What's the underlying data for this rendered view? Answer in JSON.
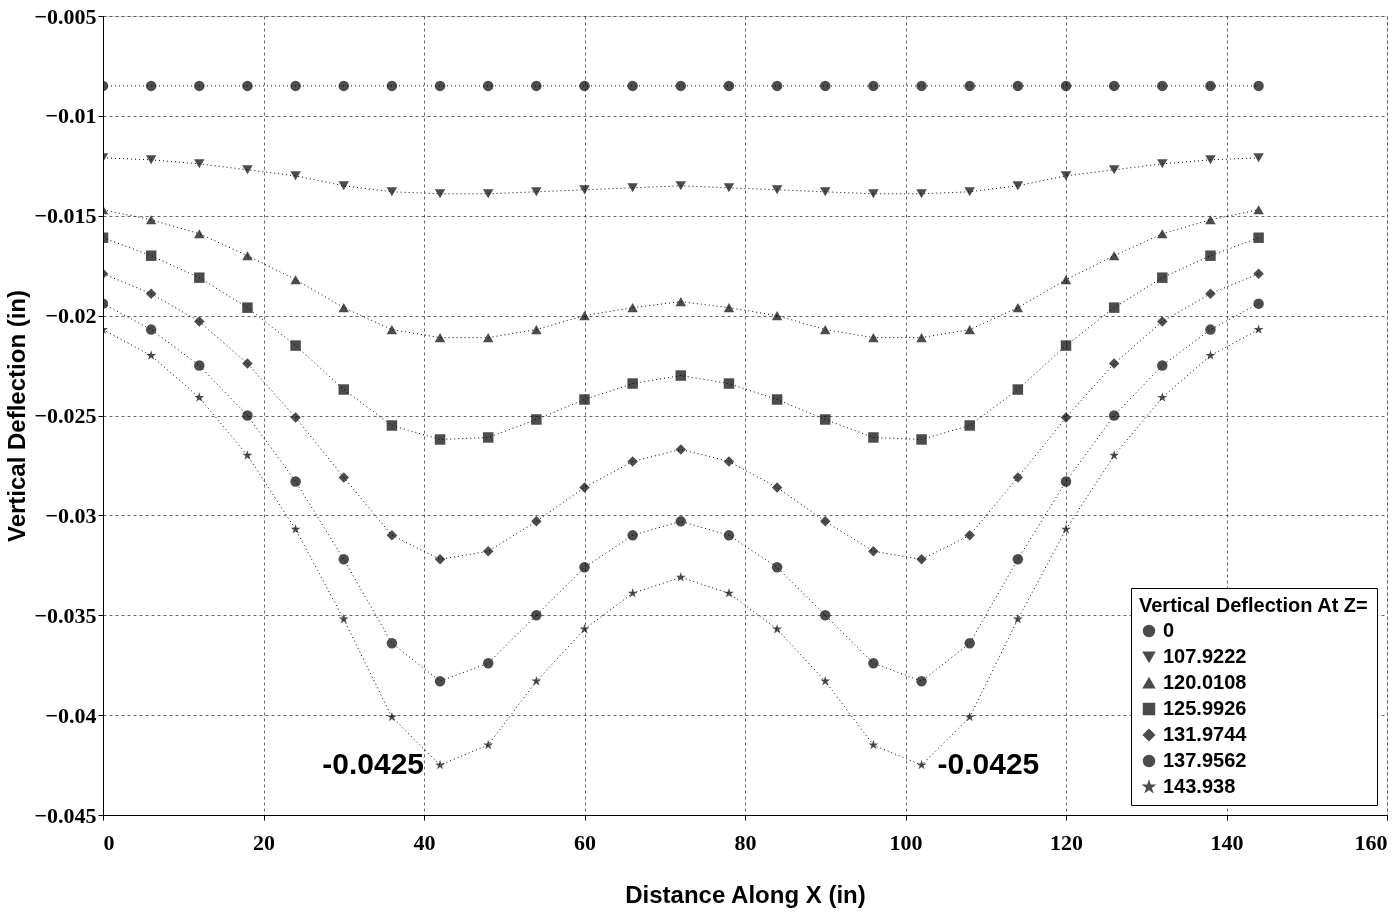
{
  "chart_data": {
    "type": "line",
    "xlabel": "Distance Along X (in)",
    "ylabel": "Vertical Deflection (in)",
    "legend_title": "Vertical Deflection At Z=",
    "x": [
      0,
      6,
      12,
      18,
      24,
      30,
      36,
      42,
      48,
      54,
      60,
      66,
      72,
      78,
      84,
      90,
      96,
      102,
      108,
      114,
      120,
      126,
      132,
      138,
      144
    ],
    "series": [
      {
        "name": "0",
        "color": "#000000",
        "marker": "circle",
        "values": [
          -0.0085,
          -0.0085,
          -0.0085,
          -0.0085,
          -0.0085,
          -0.0085,
          -0.0085,
          -0.0085,
          -0.0085,
          -0.0085,
          -0.0085,
          -0.0085,
          -0.0085,
          -0.0085,
          -0.0085,
          -0.0085,
          -0.0085,
          -0.0085,
          -0.0085,
          -0.0085,
          -0.0085,
          -0.0085,
          -0.0085,
          -0.0085,
          -0.0085
        ]
      },
      {
        "name": "107.9222",
        "color": "#000000",
        "marker": "triangle-down",
        "values": [
          -0.0121,
          -0.0122,
          -0.0124,
          -0.0127,
          -0.013,
          -0.0135,
          -0.0138,
          -0.0139,
          -0.0139,
          -0.0138,
          -0.0137,
          -0.0136,
          -0.0135,
          -0.0136,
          -0.0137,
          -0.0138,
          -0.0139,
          -0.0139,
          -0.0138,
          -0.0135,
          -0.013,
          -0.0127,
          -0.0124,
          -0.0122,
          -0.0121
        ]
      },
      {
        "name": "120.0108",
        "color": "#000000",
        "marker": "triangle-up",
        "values": [
          -0.0147,
          -0.0152,
          -0.0159,
          -0.017,
          -0.0182,
          -0.0196,
          -0.0207,
          -0.0211,
          -0.0211,
          -0.0207,
          -0.02,
          -0.0196,
          -0.0193,
          -0.0196,
          -0.02,
          -0.0207,
          -0.0211,
          -0.0211,
          -0.0207,
          -0.0196,
          -0.0182,
          -0.017,
          -0.0159,
          -0.0152,
          -0.0147
        ]
      },
      {
        "name": "125.9926",
        "color": "#000000",
        "marker": "square",
        "values": [
          -0.0161,
          -0.017,
          -0.0181,
          -0.0196,
          -0.0215,
          -0.0237,
          -0.0255,
          -0.0262,
          -0.0261,
          -0.0252,
          -0.0242,
          -0.0234,
          -0.023,
          -0.0234,
          -0.0242,
          -0.0252,
          -0.0261,
          -0.0262,
          -0.0255,
          -0.0237,
          -0.0215,
          -0.0196,
          -0.0181,
          -0.017,
          -0.0161
        ]
      },
      {
        "name": "131.9744",
        "color": "#000000",
        "marker": "diamond",
        "values": [
          -0.0179,
          -0.0189,
          -0.0203,
          -0.0224,
          -0.0251,
          -0.0281,
          -0.031,
          -0.0322,
          -0.0318,
          -0.0303,
          -0.0286,
          -0.0273,
          -0.0267,
          -0.0273,
          -0.0286,
          -0.0303,
          -0.0318,
          -0.0322,
          -0.031,
          -0.0281,
          -0.0251,
          -0.0224,
          -0.0203,
          -0.0189,
          -0.0179
        ]
      },
      {
        "name": "137.9562",
        "color": "#000000",
        "marker": "circle",
        "values": [
          -0.0194,
          -0.0207,
          -0.0225,
          -0.025,
          -0.0283,
          -0.0322,
          -0.0364,
          -0.0383,
          -0.0374,
          -0.035,
          -0.0326,
          -0.031,
          -0.0303,
          -0.031,
          -0.0326,
          -0.035,
          -0.0374,
          -0.0383,
          -0.0364,
          -0.0322,
          -0.0283,
          -0.025,
          -0.0225,
          -0.0207,
          -0.0194
        ]
      },
      {
        "name": "143.938",
        "color": "#000000",
        "marker": "star",
        "values": [
          -0.0207,
          -0.022,
          -0.0241,
          -0.027,
          -0.0307,
          -0.0352,
          -0.0401,
          -0.0425,
          -0.0415,
          -0.0383,
          -0.0357,
          -0.0339,
          -0.0331,
          -0.0339,
          -0.0357,
          -0.0383,
          -0.0415,
          -0.0425,
          -0.0401,
          -0.0352,
          -0.0307,
          -0.027,
          -0.0241,
          -0.022,
          -0.0207
        ]
      }
    ],
    "xlim": [
      0,
      160
    ],
    "xticks": [
      0,
      20,
      40,
      60,
      80,
      100,
      120,
      140,
      160
    ],
    "ylim": [
      -0.045,
      -0.005
    ],
    "yticks": [
      -0.045,
      -0.04,
      -0.035,
      -0.03,
      -0.025,
      -0.02,
      -0.015,
      -0.01,
      -0.005
    ],
    "annotations": [
      {
        "text": "-0.0425",
        "x": 42,
        "y": -0.0425
      },
      {
        "text": "-0.0425",
        "x": 102,
        "y": -0.0425
      }
    ],
    "grid": true,
    "legend": "bottom right",
    "line_style": "dotted"
  }
}
